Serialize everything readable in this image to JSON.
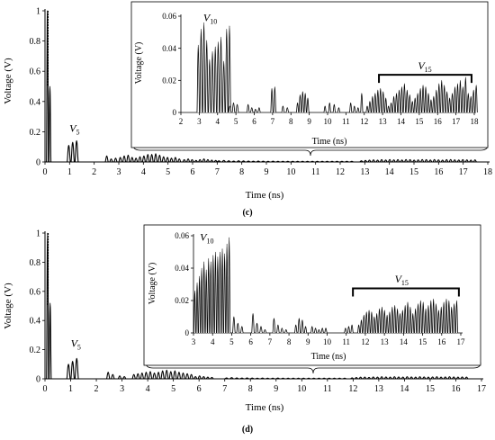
{
  "chart_data": [
    {
      "panel_label": "(c)",
      "type": "line",
      "xlabel": "Time (ns)",
      "ylabel": "Voltage (V)",
      "xlim": [
        0,
        18
      ],
      "ylim": [
        0,
        1
      ],
      "xticks": [
        0,
        1,
        2,
        3,
        4,
        5,
        6,
        7,
        8,
        9,
        10,
        11,
        12,
        13,
        14,
        15,
        16,
        17,
        18
      ],
      "yticks": [
        0,
        0.2,
        0.4,
        0.6,
        0.8,
        1
      ],
      "ytick_labels": [
        "0",
        "0.2",
        "0.4",
        "0.6",
        "0.8",
        "1"
      ],
      "annotations": [
        {
          "text": "V",
          "sub": "5",
          "x": 1.2,
          "y": 0.2
        }
      ],
      "series": [
        {
          "style": "main",
          "pulse_groups": [
            {
              "start": 0.06,
              "width": 0.08,
              "spacing": 0.1,
              "peaks": [
                1.0,
                0.5
              ]
            },
            {
              "start": 0.9,
              "width": 0.13,
              "spacing": 0.16,
              "peaks": [
                0.11,
                0.13,
                0.14
              ]
            },
            {
              "start": 2.45,
              "width": 0.12,
              "spacing": 0.18,
              "peaks": [
                0.04,
                0.02,
                0.025
              ]
            },
            {
              "start": 3.0,
              "width": 0.12,
              "spacing": 0.16,
              "peaks": [
                0.03,
                0.04,
                0.045,
                0.03,
                0.025,
                0.035,
                0.04,
                0.05,
                0.05,
                0.055,
                0.045,
                0.035,
                0.03,
                0.025,
                0.03,
                0.02
              ]
            },
            {
              "start": 5.6,
              "width": 0.12,
              "spacing": 0.16,
              "peaks": [
                0.015,
                0.02,
                0.015,
                0.01,
                0.015,
                0.02,
                0.015,
                0.012,
                0.01
              ]
            },
            {
              "start": 7.0,
              "width": 0.14,
              "spacing": 0.2,
              "peaks": [
                0.008,
                0.01,
                0.008,
                0.006,
                0.008,
                0.007,
                0.006,
                0.005,
                0.006,
                0.005,
                0.004,
                0.005,
                0.004,
                0.004,
                0.004,
                0.004,
                0.004,
                0.004,
                0.004,
                0.004,
                0.004,
                0.004,
                0.004,
                0.004,
                0.004,
                0.004,
                0.004,
                0.004
              ]
            },
            {
              "start": 12.8,
              "width": 0.12,
              "spacing": 0.165,
              "peaks": [
                0.008,
                0.01,
                0.012,
                0.014,
                0.012,
                0.015,
                0.013,
                0.016,
                0.014,
                0.015,
                0.013,
                0.016,
                0.015,
                0.012,
                0.014,
                0.016,
                0.015,
                0.013,
                0.016,
                0.014,
                0.012,
                0.015,
                0.016,
                0.014,
                0.013,
                0.015,
                0.014,
                0.012,
                0.014
              ]
            }
          ]
        }
      ],
      "inset": {
        "type": "line",
        "xlabel": "Time (ns)",
        "ylabel": "Voltage (V)",
        "xlim": [
          2,
          18
        ],
        "ylim": [
          0,
          0.06
        ],
        "xticks": [
          2,
          3,
          4,
          5,
          6,
          7,
          8,
          9,
          10,
          11,
          12,
          13,
          14,
          15,
          16,
          17,
          18
        ],
        "yticks": [
          0,
          0.02,
          0.04,
          0.06
        ],
        "ytick_labels": [
          "0",
          "0.02",
          "0.04",
          "0.06"
        ],
        "annotations": [
          {
            "text": "V",
            "sub": "10",
            "x": 3.6,
            "y": 0.057
          },
          {
            "text": "V",
            "sub": "15",
            "x": 15.3,
            "y": 0.027
          }
        ],
        "bracket": {
          "x_start": 12.8,
          "x_end": 17.85,
          "y": 0.0235
        },
        "series": [
          {
            "style": "inset",
            "pulse_groups": [
              {
                "start": 2.88,
                "width": 0.13,
                "spacing": 0.155,
                "peaks": [
                  0.042,
                  0.052,
                  0.056,
                  0.045,
                  0.033,
                  0.038,
                  0.041,
                  0.044,
                  0.047,
                  0.032,
                  0.052,
                  0.054
                ]
              },
              {
                "start": 4.6,
                "width": 0.14,
                "spacing": 0.2,
                "peaks": [
                  0.004,
                  0.006,
                  0.005
                ]
              },
              {
                "start": 5.6,
                "width": 0.13,
                "spacing": 0.2,
                "peaks": [
                  0.005,
                  0.003,
                  0.002,
                  0.003
                ]
              },
              {
                "start": 6.9,
                "width": 0.12,
                "spacing": 0.16,
                "peaks": [
                  0.015,
                  0.016
                ]
              },
              {
                "start": 7.5,
                "width": 0.13,
                "spacing": 0.24,
                "peaks": [
                  0.004,
                  0.003
                ]
              },
              {
                "start": 8.3,
                "width": 0.12,
                "spacing": 0.14,
                "peaks": [
                  0.006,
                  0.011,
                  0.013,
                  0.012,
                  0.009
                ]
              },
              {
                "start": 9.8,
                "width": 0.12,
                "spacing": 0.25,
                "peaks": [
                  0.004,
                  0.006,
                  0.005,
                  0.003
                ]
              },
              {
                "start": 11.2,
                "width": 0.12,
                "spacing": 0.2,
                "peaks": [
                  0.006,
                  0.004,
                  0.003,
                  0.012
                ]
              },
              {
                "start": 12.1,
                "width": 0.12,
                "spacing": 0.145,
                "peaks": [
                  0.004,
                  0.007,
                  0.01,
                  0.012,
                  0.014,
                  0.015,
                  0.013,
                  0.009,
                  0.004,
                  0.006,
                  0.01,
                  0.012,
                  0.014,
                  0.016,
                  0.018,
                  0.014,
                  0.011,
                  0.007,
                  0.009,
                  0.012,
                  0.015,
                  0.017,
                  0.016,
                  0.012,
                  0.008,
                  0.01,
                  0.014,
                  0.018,
                  0.02,
                  0.017,
                  0.013,
                  0.009,
                  0.012,
                  0.016,
                  0.018,
                  0.02,
                  0.016,
                  0.022,
                  0.012,
                  0.01,
                  0.014,
                  0.017
                ]
              }
            ]
          }
        ]
      }
    },
    {
      "panel_label": "(d)",
      "type": "line",
      "xlabel": "Time (ns)",
      "ylabel": "Voltage (V)",
      "xlim": [
        0,
        17
      ],
      "ylim": [
        0,
        1
      ],
      "xticks": [
        0,
        1,
        2,
        3,
        4,
        5,
        6,
        7,
        8,
        9,
        10,
        11,
        12,
        13,
        14,
        15,
        16,
        17
      ],
      "yticks": [
        0,
        0.2,
        0.4,
        0.6,
        0.8,
        1
      ],
      "ytick_labels": [
        "0",
        "0.2",
        "0.4",
        "0.6",
        "0.8",
        "1"
      ],
      "annotations": [
        {
          "text": "V",
          "sub": "5",
          "x": 1.2,
          "y": 0.22
        }
      ],
      "series": [
        {
          "style": "main",
          "pulse_groups": [
            {
              "start": 0.06,
              "width": 0.08,
              "spacing": 0.1,
              "peaks": [
                1.0,
                0.52
              ]
            },
            {
              "start": 0.85,
              "width": 0.13,
              "spacing": 0.16,
              "peaks": [
                0.1,
                0.12,
                0.14
              ]
            },
            {
              "start": 2.4,
              "width": 0.12,
              "spacing": 0.18,
              "peaks": [
                0.045,
                0.03
              ]
            },
            {
              "start": 2.85,
              "width": 0.12,
              "spacing": 0.18,
              "peaks": [
                0.02,
                0.015
              ]
            },
            {
              "start": 3.4,
              "width": 0.12,
              "spacing": 0.16,
              "peaks": [
                0.03,
                0.035,
                0.04,
                0.045,
                0.05,
                0.04,
                0.045,
                0.055,
                0.06,
                0.05,
                0.055,
                0.045,
                0.04,
                0.035,
                0.03
              ]
            },
            {
              "start": 5.8,
              "width": 0.12,
              "spacing": 0.16,
              "peaks": [
                0.015,
                0.02,
                0.015,
                0.012,
                0.01
              ]
            },
            {
              "start": 7.0,
              "width": 0.14,
              "spacing": 0.2,
              "peaks": [
                0.006,
                0.008,
                0.006,
                0.005,
                0.006,
                0.005,
                0.004,
                0.005,
                0.004,
                0.004,
                0.005,
                0.004,
                0.004,
                0.004,
                0.004,
                0.004,
                0.004,
                0.004,
                0.004,
                0.004,
                0.004,
                0.004,
                0.004,
                0.004
              ]
            },
            {
              "start": 11.9,
              "width": 0.12,
              "spacing": 0.165,
              "peaks": [
                0.007,
                0.009,
                0.011,
                0.012,
                0.01,
                0.013,
                0.012,
                0.014,
                0.013,
                0.012,
                0.014,
                0.013,
                0.012,
                0.014,
                0.013,
                0.012,
                0.014,
                0.013,
                0.012,
                0.013,
                0.014,
                0.012,
                0.013,
                0.014,
                0.013,
                0.012,
                0.013,
                0.012
              ]
            }
          ]
        }
      ],
      "inset": {
        "type": "line",
        "xlabel": "Time (ns)",
        "ylabel": "Voltage (V)",
        "xlim": [
          3,
          17
        ],
        "ylim": [
          0,
          0.06
        ],
        "xticks": [
          3,
          4,
          5,
          6,
          7,
          8,
          9,
          10,
          11,
          12,
          13,
          14,
          15,
          16,
          17
        ],
        "yticks": [
          0,
          0.02,
          0.04,
          0.06
        ],
        "ytick_labels": [
          "0",
          "0.02",
          "0.04",
          "0.06"
        ],
        "annotations": [
          {
            "text": "V",
            "sub": "10",
            "x": 3.7,
            "y": 0.057
          },
          {
            "text": "V",
            "sub": "15",
            "x": 13.9,
            "y": 0.031
          }
        ],
        "bracket": {
          "x_start": 11.35,
          "x_end": 16.9,
          "y": 0.0275
        },
        "series": [
          {
            "style": "inset",
            "pulse_groups": [
              {
                "start": 3.02,
                "width": 0.1,
                "spacing": 0.12,
                "peaks": [
                  0.026,
                  0.031,
                  0.035,
                  0.04,
                  0.044,
                  0.039,
                  0.046,
                  0.044,
                  0.048,
                  0.05,
                  0.047,
                  0.05,
                  0.052,
                  0.049,
                  0.055,
                  0.059
                ]
              },
              {
                "start": 5.05,
                "width": 0.13,
                "spacing": 0.21,
                "peaks": [
                  0.01,
                  0.006,
                  0.004
                ]
              },
              {
                "start": 6.05,
                "width": 0.13,
                "spacing": 0.21,
                "peaks": [
                  0.012,
                  0.006,
                  0.004,
                  0.002
                ]
              },
              {
                "start": 7.15,
                "width": 0.13,
                "spacing": 0.21,
                "peaks": [
                  0.009,
                  0.005,
                  0.003,
                  0.002
                ]
              },
              {
                "start": 8.3,
                "width": 0.12,
                "spacing": 0.17,
                "peaks": [
                  0.005,
                  0.009,
                  0.008,
                  0.004
                ]
              },
              {
                "start": 9.15,
                "width": 0.12,
                "spacing": 0.18,
                "peaks": [
                  0.004,
                  0.003,
                  0.002,
                  0.003,
                  0.003
                ]
              },
              {
                "start": 10.9,
                "width": 0.12,
                "spacing": 0.17,
                "peaks": [
                  0.003,
                  0.004,
                  0.005
                ]
              },
              {
                "start": 11.6,
                "width": 0.11,
                "spacing": 0.135,
                "peaks": [
                  0.005,
                  0.008,
                  0.011,
                  0.013,
                  0.014,
                  0.013,
                  0.01,
                  0.012,
                  0.015,
                  0.016,
                  0.014,
                  0.011,
                  0.013,
                  0.016,
                  0.017,
                  0.015,
                  0.012,
                  0.014,
                  0.017,
                  0.019,
                  0.016,
                  0.012,
                  0.015,
                  0.018,
                  0.02,
                  0.019,
                  0.015,
                  0.017,
                  0.02,
                  0.021,
                  0.018,
                  0.014,
                  0.016,
                  0.019,
                  0.021,
                  0.02,
                  0.016,
                  0.018,
                  0.02
                ]
              }
            ]
          }
        ]
      }
    }
  ]
}
